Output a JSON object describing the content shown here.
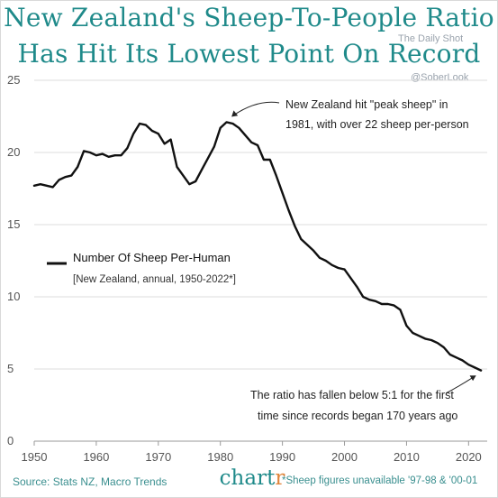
{
  "header": {
    "title_line1": "New Zealand's Sheep-To-People Ratio",
    "title_line2": "Has Hit Its Lowest Point On Record",
    "watermark_source": "The Daily Shot",
    "watermark_handle": "@SoberLook"
  },
  "footer": {
    "source": "Source: Stats NZ, Macro Trends",
    "brand_main": "chart",
    "brand_accent": "r",
    "note": "*Sheep figures unavailable '97-98 & '00-01"
  },
  "colors": {
    "title": "#1f8a8a",
    "line": "#111111",
    "grid": "#dddddd",
    "brand_accent": "#e0843a"
  },
  "chart_data": {
    "type": "line",
    "title": "New Zealand's Sheep-To-People Ratio Has Hit Its Lowest Point On Record",
    "xlim": [
      1950,
      2023
    ],
    "ylim": [
      0,
      25
    ],
    "xticks": [
      1950,
      1960,
      1970,
      1980,
      1990,
      2000,
      2010,
      2020
    ],
    "yticks": [
      0,
      5,
      10,
      15,
      20,
      25
    ],
    "grid": "horizontal",
    "legend": {
      "placement": "left",
      "label": "Number Of Sheep Per-Human",
      "sublabel": "[New Zealand, annual, 1950-2022*]"
    },
    "annotations": [
      {
        "lines": [
          "New Zealand hit \"peak sheep\" in",
          "1981, with over 22 sheep per-person"
        ],
        "target_x": 1981,
        "target_y": 22.0
      },
      {
        "lines": [
          "The ratio has fallen below 5:1 for the first",
          "time since records began 170 years ago"
        ],
        "target_x": 2022,
        "target_y": 4.9
      }
    ],
    "series": [
      {
        "name": "Number Of Sheep Per-Human",
        "x": [
          1950,
          1951,
          1952,
          1953,
          1954,
          1955,
          1956,
          1957,
          1958,
          1959,
          1960,
          1961,
          1962,
          1963,
          1964,
          1965,
          1966,
          1967,
          1968,
          1969,
          1970,
          1971,
          1972,
          1973,
          1974,
          1975,
          1976,
          1977,
          1978,
          1979,
          1980,
          1981,
          1982,
          1983,
          1984,
          1985,
          1986,
          1987,
          1988,
          1989,
          1990,
          1991,
          1992,
          1993,
          1994,
          1995,
          1996,
          1997,
          1998,
          1999,
          2000,
          2001,
          2002,
          2003,
          2004,
          2005,
          2006,
          2007,
          2008,
          2009,
          2010,
          2011,
          2012,
          2013,
          2014,
          2015,
          2016,
          2017,
          2018,
          2019,
          2020,
          2021,
          2022
        ],
        "values": [
          17.7,
          17.8,
          17.7,
          17.6,
          18.1,
          18.3,
          18.4,
          19.0,
          20.1,
          20.0,
          19.8,
          19.9,
          19.7,
          19.8,
          19.8,
          20.3,
          21.3,
          22.0,
          21.9,
          21.5,
          21.3,
          20.6,
          20.9,
          19.0,
          18.4,
          17.8,
          18.0,
          18.8,
          19.6,
          20.4,
          21.7,
          22.1,
          22.0,
          21.7,
          21.2,
          20.7,
          20.5,
          19.5,
          19.5,
          18.4,
          17.2,
          16.0,
          14.9,
          14.0,
          13.6,
          13.2,
          12.7,
          12.5,
          12.2,
          12.0,
          11.9,
          11.3,
          10.7,
          10.0,
          9.8,
          9.7,
          9.5,
          9.5,
          9.4,
          9.1,
          8.0,
          7.5,
          7.3,
          7.1,
          7.0,
          6.8,
          6.5,
          6.0,
          5.8,
          5.6,
          5.3,
          5.1,
          4.9
        ]
      }
    ]
  }
}
